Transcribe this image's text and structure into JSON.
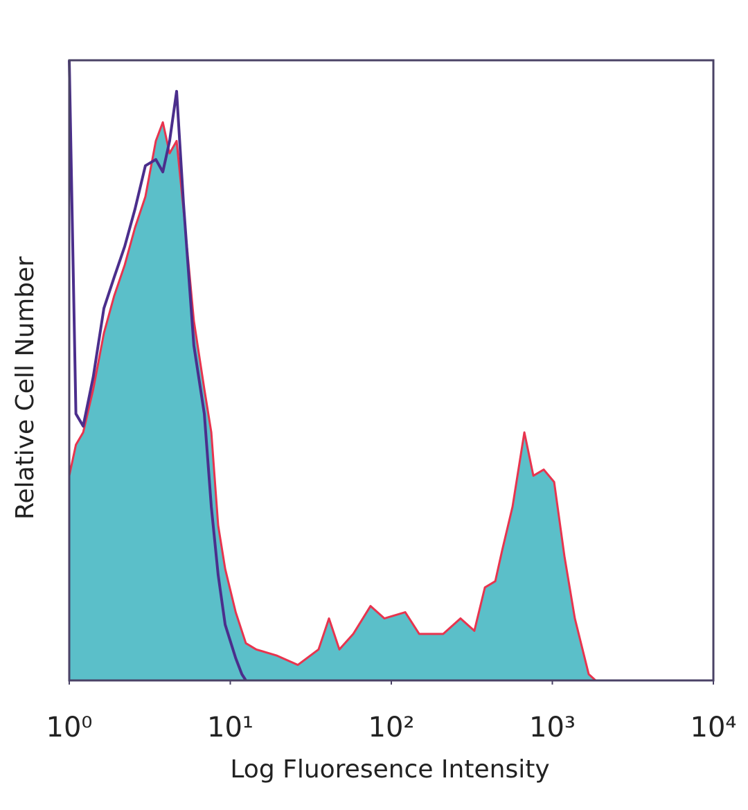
{
  "chart_data": {
    "type": "area",
    "x_label": "Log Fluoresence Intensity",
    "y_label": "Relative Cell Number",
    "x_scale": "log",
    "xlim": [
      1,
      10000
    ],
    "ylim": [
      0,
      100
    ],
    "xticks": [
      {
        "value": 1,
        "label": "10⁰"
      },
      {
        "value": 10,
        "label": "10¹"
      },
      {
        "value": 100,
        "label": "10²"
      },
      {
        "value": 1000,
        "label": "10³"
      },
      {
        "value": 10000,
        "label": "10⁴"
      }
    ],
    "frame_color": "#4a4266",
    "series": [
      {
        "color": "#5bbfc9",
        "line_color": "#e8344e",
        "filled": true,
        "x": [
          1,
          1.1,
          1.22,
          1.41,
          1.64,
          1.9,
          2.21,
          2.56,
          2.97,
          3.45,
          3.81,
          4.2,
          4.64,
          5.12,
          5.94,
          6.9,
          7.62,
          8.41,
          9.29,
          10.8,
          12.5,
          14.5,
          19.5,
          26.3,
          35.3,
          41,
          47.6,
          58,
          74.3,
          90.6,
          122,
          149,
          210,
          269,
          328,
          381,
          442,
          488,
          566,
          670,
          762,
          884,
          1026,
          1189,
          1380,
          1682,
          1857
        ],
        "values": [
          33,
          38,
          40,
          47,
          56,
          62,
          67,
          73,
          78,
          87,
          90,
          85,
          87,
          76,
          58,
          47,
          40,
          25,
          18,
          11,
          6,
          5,
          4,
          2.5,
          5,
          10,
          5,
          7.5,
          12,
          10,
          11,
          7.5,
          7.5,
          10,
          8,
          15,
          16,
          21,
          28,
          40,
          33,
          34,
          32,
          20,
          10,
          1,
          0
        ]
      },
      {
        "color": "#4b2e8c",
        "filled": false,
        "x": [
          1,
          1.1,
          1.22,
          1.41,
          1.64,
          1.9,
          2.21,
          2.56,
          2.97,
          3.45,
          3.81,
          4.2,
          4.64,
          5.12,
          5.94,
          6.9,
          7.62,
          8.41,
          9.29,
          10.8,
          11.8,
          12.5
        ],
        "values": [
          100,
          43,
          41,
          49,
          60,
          65,
          70,
          76,
          83,
          84,
          82,
          87,
          95,
          77,
          54,
          43,
          28,
          17,
          9,
          3.6,
          1,
          0
        ]
      }
    ]
  }
}
